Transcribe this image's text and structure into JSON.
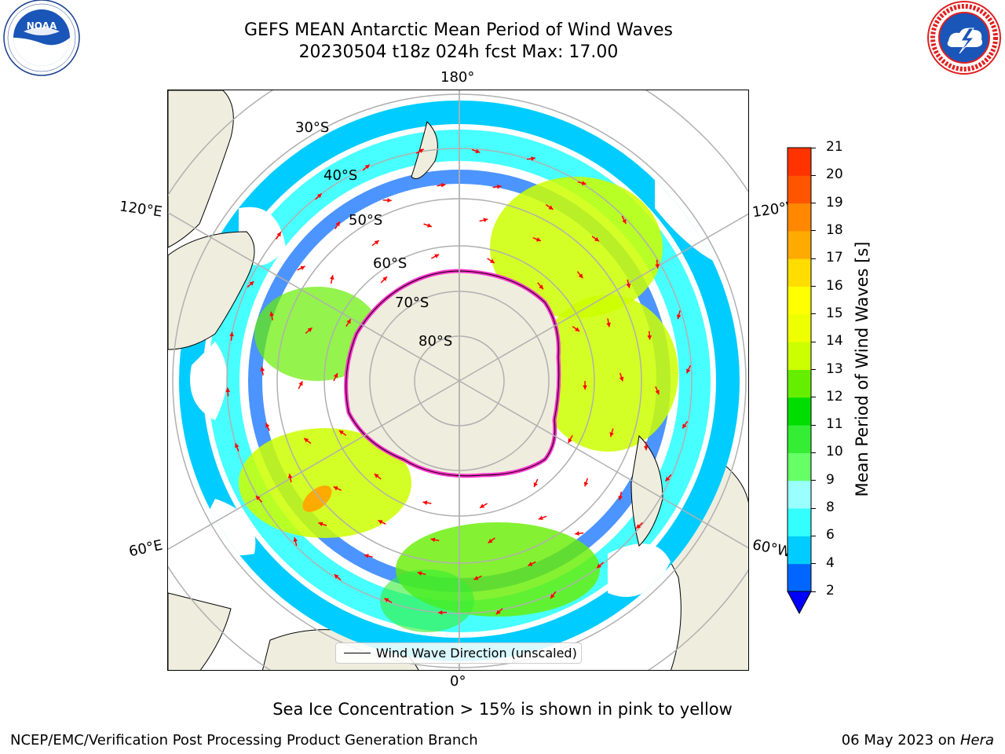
{
  "header": {
    "title_line1": "GEFS MEAN Antarctic Mean Period of Wind Waves",
    "title_line2": "20230504 t18z 024h fcst   Max: 17.00"
  },
  "logos": {
    "left": {
      "name": "NOAA",
      "text": "NOAA",
      "ring_text": "NATIONAL OCEANIC AND ATMOSPHERIC ADMINISTRATION · U.S. DEPARTMENT OF COMMERCE"
    },
    "right": {
      "name": "National Weather Service",
      "ring_text": "NATIONAL WEATHER SERVICE"
    }
  },
  "map": {
    "projection": "south-polar-stereographic",
    "longitude_labels": {
      "top": "180°",
      "bottom": "0°",
      "left_upper": "120°E",
      "left_lower": "60°E",
      "right_upper": "120°W",
      "right_lower": "60°W"
    },
    "latitude_labels": [
      "30°S",
      "40°S",
      "50°S",
      "60°S",
      "70°S",
      "80°S"
    ],
    "colors": {
      "land": "#efedde",
      "sea_ice_edge": "#ff33cc",
      "arrow": "#ff0000",
      "grid": "#b0b0b0"
    },
    "legend": {
      "label": "Wind Wave Direction (unscaled)"
    }
  },
  "colorbar": {
    "title": "Mean Period of Wind Waves [s]",
    "ticks": [
      "2",
      "4",
      "6",
      "8",
      "9",
      "10",
      "11",
      "12",
      "13",
      "14",
      "15",
      "16",
      "17",
      "18",
      "19",
      "20",
      "21"
    ],
    "colors": [
      "#0066ff",
      "#00ccff",
      "#33ffff",
      "#99ffff",
      "#66ff66",
      "#33ee33",
      "#00dd00",
      "#66ee00",
      "#ccff00",
      "#eeff00",
      "#ffff00",
      "#ffdd00",
      "#ffaa00",
      "#ff8800",
      "#ff5500",
      "#ff3300"
    ],
    "under_color": "#0000ff"
  },
  "caption": "Sea Ice Concentration > 15% is shown in pink to yellow",
  "footer": {
    "left": "NCEP/EMC/Verification Post Processing Product Generation Branch",
    "right_prefix": "06 May 2023 on",
    "right_host": "Hera"
  }
}
